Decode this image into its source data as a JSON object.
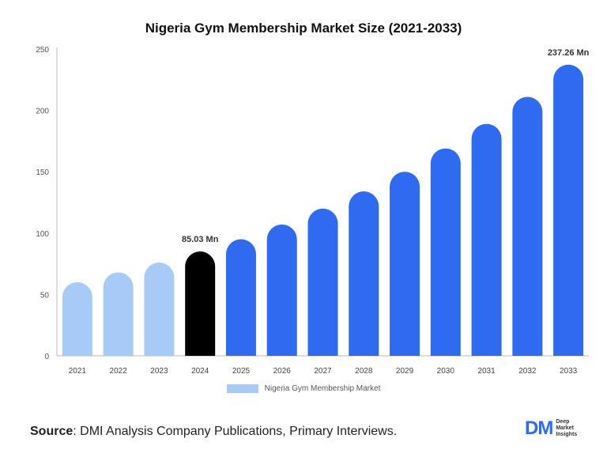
{
  "chart_data": {
    "type": "bar",
    "title": "Nigeria Gym Membership Market Size (2021-2033)",
    "categories": [
      "2021",
      "2022",
      "2023",
      "2024",
      "2025",
      "2026",
      "2027",
      "2028",
      "2029",
      "2030",
      "2031",
      "2032",
      "2033"
    ],
    "series": [
      {
        "name": "Nigeria Gym Membership Market",
        "values": [
          60,
          68,
          76,
          85.03,
          95,
          107,
          120,
          134,
          150,
          169,
          189,
          211,
          237.26
        ]
      }
    ],
    "bar_colors": [
      "#a7cbf6",
      "#a7cbf6",
      "#a7cbf6",
      "#000000",
      "#2f6bf0",
      "#2f6bf0",
      "#2f6bf0",
      "#2f6bf0",
      "#2f6bf0",
      "#2f6bf0",
      "#2f6bf0",
      "#2f6bf0",
      "#2f6bf0"
    ],
    "data_labels": [
      {
        "index": 3,
        "text": "85.03 Mn"
      },
      {
        "index": 12,
        "text": "237.26 Mn"
      }
    ],
    "yticks": [
      0,
      50,
      100,
      150,
      200,
      250
    ],
    "ylim": [
      0,
      250
    ],
    "xlabel": "",
    "ylabel": "",
    "grid": false,
    "legend_position": "bottom"
  },
  "legend": {
    "label": "Nigeria Gym Membership Market",
    "color": "#a7cbf6"
  },
  "source": {
    "label": "Source",
    "text": ": DMI Analysis Company Publications, Primary Interviews."
  },
  "logo": {
    "mark": "DM",
    "lines": [
      "Deep",
      "Market",
      "Insights"
    ]
  }
}
